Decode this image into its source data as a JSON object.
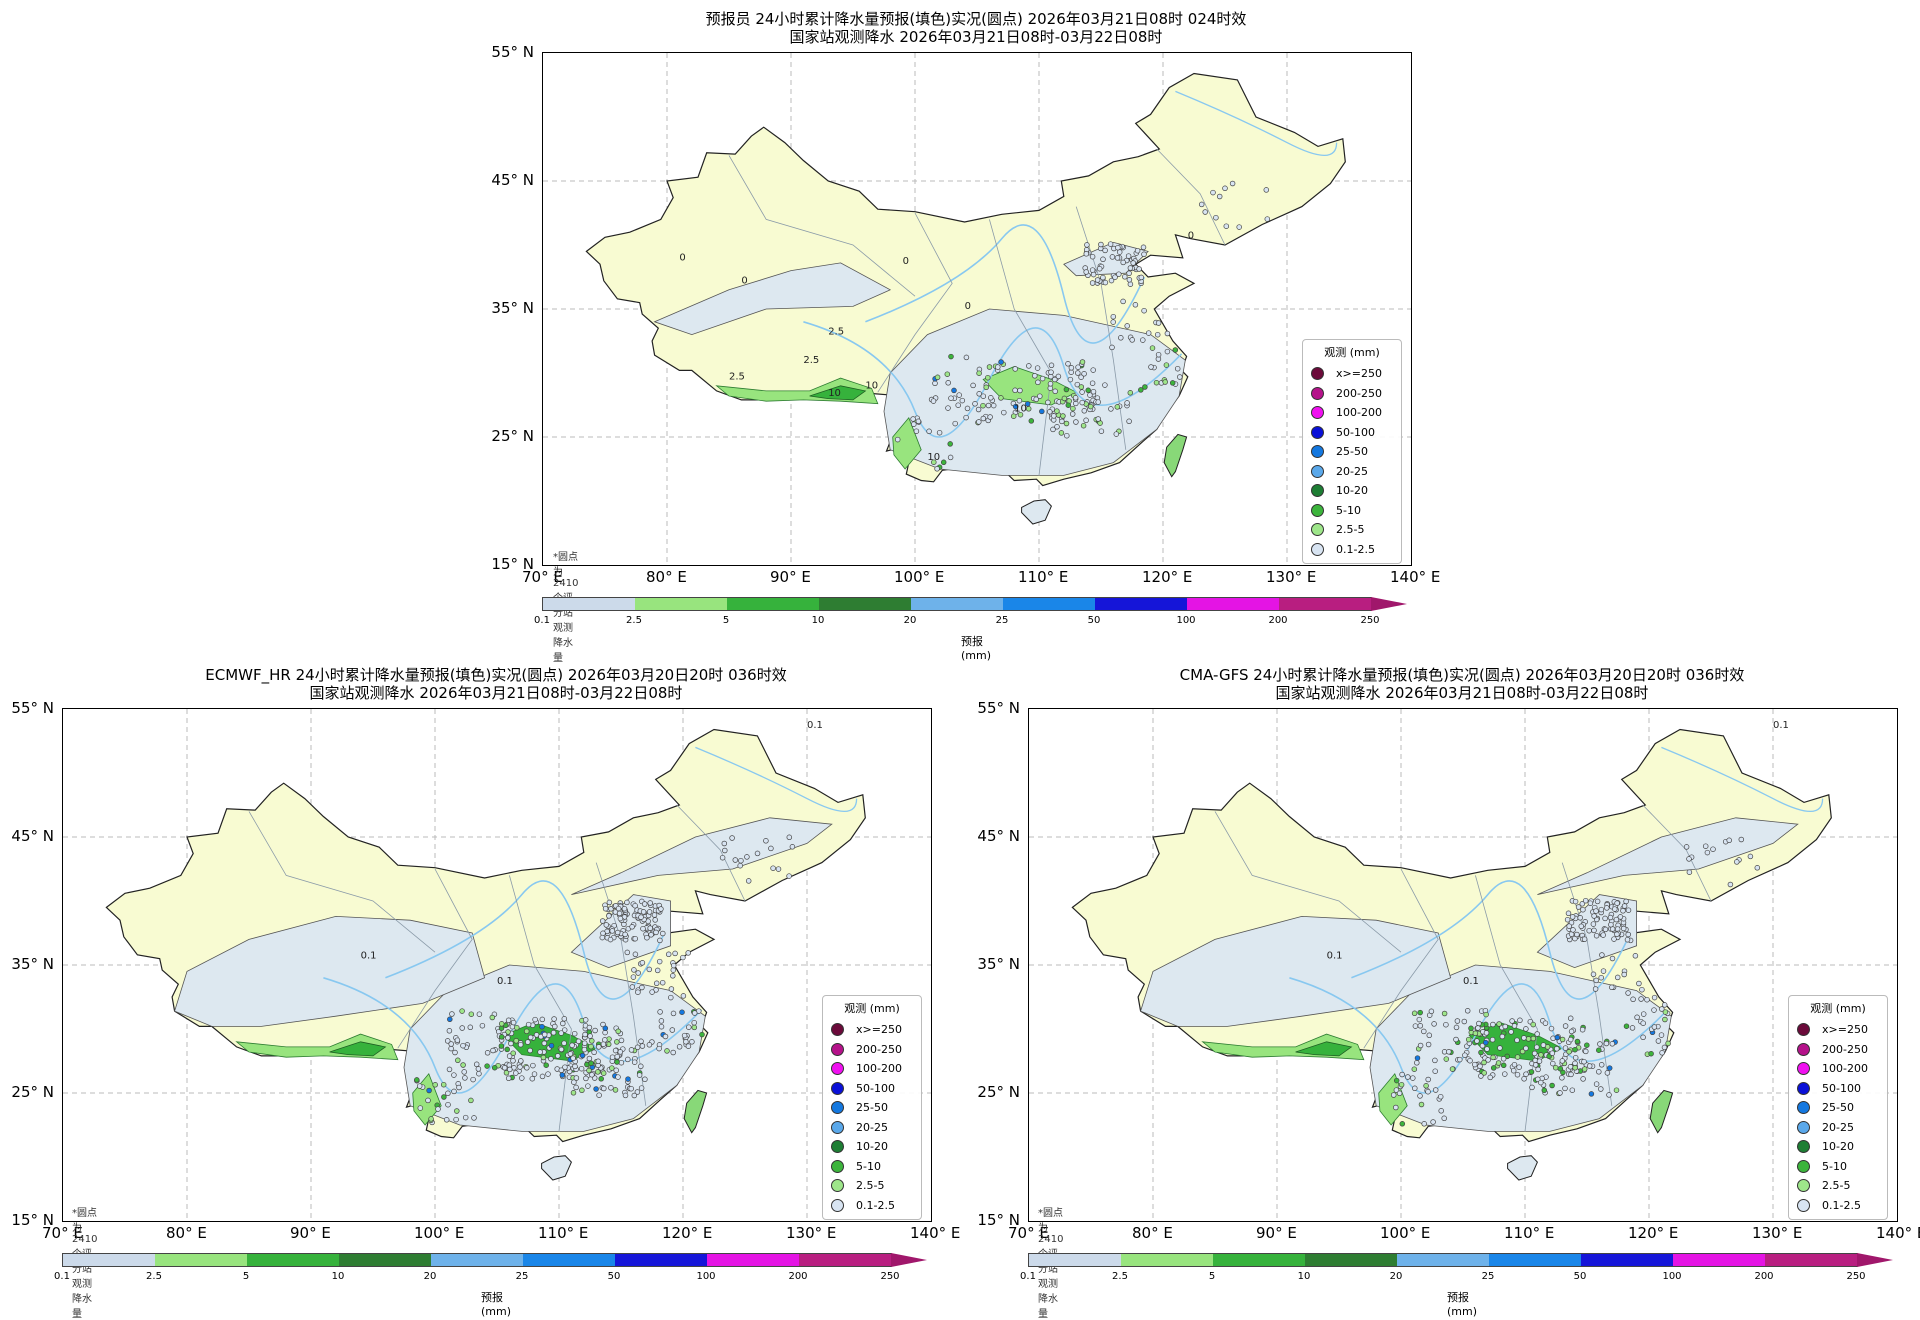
{
  "chart_data": [
    {
      "type": "map",
      "title_line1": "预报员 24小时累计降水量预报(填色)实况(圆点) 2026年03月21日08时 024时效",
      "title_line2": "国家站观测降水 2026年03月21日08时-03月22日08时",
      "note": "*圆点为2410个评分站观测降水量",
      "lat_ticks": [
        "55° N",
        "45° N",
        "35° N",
        "25° N",
        "15° N"
      ],
      "lon_ticks": [
        "70° E",
        "80° E",
        "90° E",
        "100° E",
        "110° E",
        "120° E",
        "130° E",
        "140° E"
      ],
      "lon_range": [
        70,
        140
      ],
      "lat_range": [
        15,
        55
      ],
      "contour_labels": [
        "0",
        "0",
        "0",
        "2.5",
        "2.5",
        "2.5",
        "10",
        "10",
        "10",
        "10",
        "0",
        "0"
      ]
    },
    {
      "type": "map",
      "title_line1": "ECMWF_HR 24小时累计降水量预报(填色)实况(圆点) 2026年03月20日20时 036时效",
      "title_line2": "国家站观测降水 2026年03月21日08时-03月22日08时",
      "note": "*圆点为2410个评分站观测降水量",
      "lat_ticks": [
        "55° N",
        "45° N",
        "35° N",
        "25° N",
        "15° N"
      ],
      "lon_ticks": [
        "70° E",
        "80° E",
        "90° E",
        "100° E",
        "110° E",
        "120° E",
        "130° E",
        "140° E"
      ],
      "lon_range": [
        70,
        140
      ],
      "lat_range": [
        15,
        55
      ],
      "contour_labels": [
        "0.1",
        "0.1",
        "0.1"
      ]
    },
    {
      "type": "map",
      "title_line1": "CMA-GFS 24小时累计降水量预报(填色)实况(圆点) 2026年03月20日20时 036时效",
      "title_line2": "国家站观测降水 2026年03月21日08时-03月22日08时",
      "note": "*圆点为2410个评分站观测降水量",
      "lat_ticks": [
        "55° N",
        "45° N",
        "35° N",
        "25° N",
        "15° N"
      ],
      "lon_ticks": [
        "70° E",
        "80° E",
        "90° E",
        "100° E",
        "110° E",
        "120° E",
        "130° E",
        "140° E"
      ],
      "lon_range": [
        70,
        140
      ],
      "lat_range": [
        15,
        55
      ],
      "contour_labels": [
        "0.1",
        "0.1",
        "0.1"
      ]
    }
  ],
  "legend": {
    "title": "观测 (mm)",
    "items": [
      {
        "label": "x>=250",
        "color": "#6b0a3a"
      },
      {
        "label": "200-250",
        "color": "#b5128a"
      },
      {
        "label": "100-200",
        "color": "#f010f0"
      },
      {
        "label": "50-100",
        "color": "#0a10d8"
      },
      {
        "label": "25-50",
        "color": "#1478e0"
      },
      {
        "label": "20-25",
        "color": "#5aa8ea"
      },
      {
        "label": "10-20",
        "color": "#1e7e34"
      },
      {
        "label": "5-10",
        "color": "#3cb43c"
      },
      {
        "label": "2.5-5",
        "color": "#9ee68a"
      },
      {
        "label": "0.1-2.5",
        "color": "#d8e4f2"
      }
    ]
  },
  "colorbar": {
    "name": "预报(mm)",
    "ticks": [
      "0.1",
      "2.5",
      "5",
      "10",
      "20",
      "25",
      "50",
      "100",
      "200",
      "250"
    ],
    "colors": [
      "#ccdaea",
      "#98e47e",
      "#36b23c",
      "#2e7d32",
      "#6eb2ea",
      "#1a86e8",
      "#1515d8",
      "#e414e4",
      "#b81e80"
    ],
    "extend_color": "#a0176b"
  },
  "colors": {
    "land": "#f8fbd2",
    "light_rain": "#dde8f0",
    "sea": "#ffffff",
    "grid": "#bbbbbb",
    "river": "#88c8f0"
  }
}
